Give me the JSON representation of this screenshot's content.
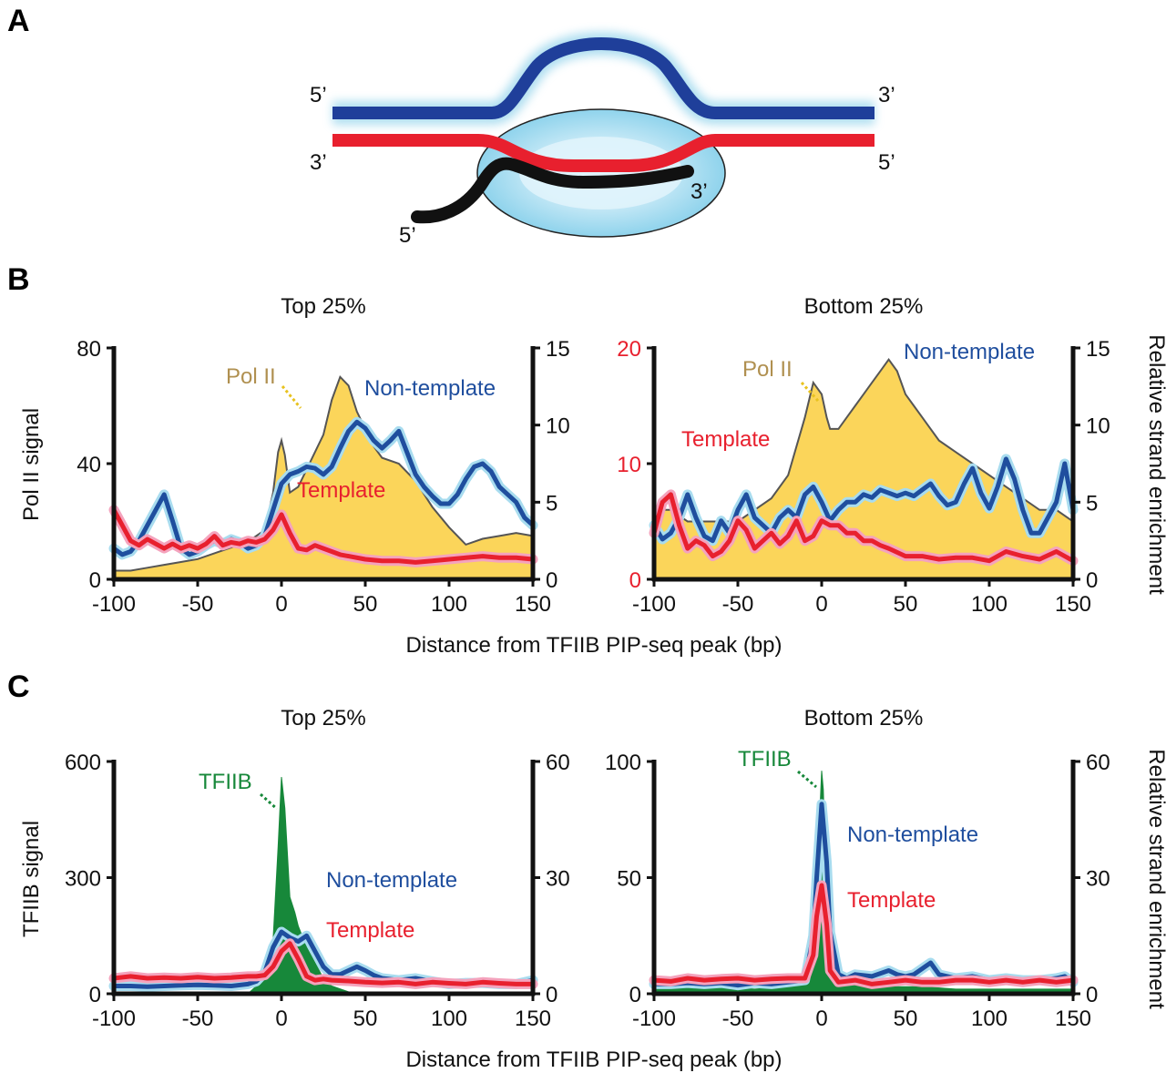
{
  "panels": {
    "a": "A",
    "b": "B",
    "c": "C"
  },
  "schematic": {
    "nontemplate_5": "5’",
    "nontemplate_3": "3’",
    "template_3": "3’",
    "template_5": "5’",
    "rna_5": "5’",
    "rna_3": "3’"
  },
  "colors": {
    "non_template": "#1f4e9e",
    "template": "#e8202e",
    "pol2": "#fbd55a",
    "tfiib": "#17883a",
    "pol2_label": "#b09050",
    "rna": "#111111",
    "bubble": "#a8dcef"
  },
  "shared_xlabel": "Distance from TFIIB PIP-seq peak (bp)",
  "chart_data": [
    {
      "id": "B-top",
      "type": "area",
      "title": "Top 25%",
      "ylabel_left": "Pol II signal",
      "ylabel_right": "",
      "xlim": [
        -100,
        150
      ],
      "x_ticks": [
        "-100",
        "-50",
        "0",
        "50",
        "100",
        "150"
      ],
      "ylim_left": [
        0,
        80
      ],
      "y_ticks_left": [
        "0",
        "40",
        "80"
      ],
      "ylim_right": [
        0,
        15
      ],
      "y_ticks_right": [
        "0",
        "5",
        "10",
        "15"
      ],
      "labels": {
        "area": "Pol II",
        "non_template": "Non-template",
        "template": "Template"
      },
      "area": {
        "name": "Pol II",
        "axis": "left",
        "x": [
          -100,
          -90,
          -80,
          -70,
          -60,
          -50,
          -40,
          -30,
          -20,
          -10,
          -5,
          -2,
          0,
          2,
          5,
          10,
          15,
          20,
          25,
          30,
          35,
          40,
          45,
          50,
          55,
          60,
          70,
          80,
          90,
          100,
          110,
          120,
          130,
          140,
          150
        ],
        "y": [
          3,
          3,
          4,
          5,
          6,
          7,
          9,
          11,
          13,
          17,
          30,
          44,
          48,
          43,
          30,
          32,
          38,
          44,
          50,
          62,
          70,
          67,
          58,
          52,
          46,
          42,
          40,
          34,
          25,
          18,
          12,
          14,
          15,
          16,
          15
        ]
      },
      "series": [
        {
          "name": "Non-template",
          "axis": "right",
          "x": [
            -100,
            -95,
            -90,
            -85,
            -80,
            -75,
            -70,
            -65,
            -60,
            -55,
            -50,
            -45,
            -40,
            -35,
            -30,
            -25,
            -20,
            -15,
            -10,
            -5,
            0,
            5,
            10,
            15,
            20,
            25,
            30,
            35,
            40,
            45,
            50,
            55,
            60,
            65,
            70,
            75,
            80,
            85,
            90,
            95,
            100,
            105,
            110,
            115,
            120,
            125,
            130,
            135,
            140,
            145,
            150
          ],
          "y": [
            2.0,
            1.6,
            1.8,
            2.5,
            3.5,
            4.5,
            5.5,
            3.8,
            2.0,
            1.6,
            1.8,
            2.2,
            2.5,
            2.3,
            2.6,
            2.4,
            2.0,
            2.2,
            2.8,
            4.5,
            6.2,
            6.8,
            7.0,
            7.3,
            7.2,
            6.8,
            7.3,
            8.5,
            9.6,
            10.2,
            9.8,
            9.0,
            8.5,
            9.0,
            9.6,
            8.2,
            6.8,
            6.0,
            5.4,
            4.9,
            4.9,
            5.5,
            6.5,
            7.3,
            7.5,
            7.0,
            6.0,
            5.5,
            5.0,
            4.0,
            3.5
          ]
        },
        {
          "name": "Template",
          "axis": "right",
          "x": [
            -100,
            -95,
            -90,
            -85,
            -80,
            -75,
            -70,
            -65,
            -60,
            -55,
            -50,
            -45,
            -40,
            -35,
            -30,
            -25,
            -20,
            -15,
            -10,
            -5,
            0,
            5,
            10,
            15,
            20,
            25,
            30,
            35,
            40,
            50,
            60,
            70,
            80,
            90,
            100,
            110,
            120,
            130,
            140,
            150
          ],
          "y": [
            4.5,
            3.5,
            2.5,
            2.2,
            2.6,
            2.3,
            2.0,
            2.3,
            2.0,
            2.2,
            2.0,
            2.3,
            2.8,
            2.2,
            2.4,
            2.3,
            2.5,
            2.4,
            2.6,
            3.2,
            4.2,
            3.0,
            2.0,
            1.9,
            2.2,
            2.0,
            1.8,
            1.6,
            1.5,
            1.3,
            1.2,
            1.2,
            1.1,
            1.2,
            1.3,
            1.4,
            1.5,
            1.4,
            1.4,
            1.3
          ]
        }
      ]
    },
    {
      "id": "B-bottom",
      "type": "area",
      "title": "Bottom 25%",
      "ylabel_left": "",
      "ylabel_right": "Relative strand enrichment",
      "xlim": [
        -100,
        150
      ],
      "x_ticks": [
        "-100",
        "-50",
        "0",
        "50",
        "100",
        "150"
      ],
      "ylim_left": [
        0,
        20
      ],
      "y_ticks_left": [
        "0",
        "10",
        "20"
      ],
      "ylim_right": [
        0,
        15
      ],
      "y_ticks_right": [
        "0",
        "5",
        "10",
        "15"
      ],
      "labels": {
        "area": "Pol II",
        "non_template": "Non-template",
        "template": "Template"
      },
      "area": {
        "name": "Pol II",
        "axis": "left",
        "x": [
          -100,
          -90,
          -80,
          -70,
          -60,
          -50,
          -40,
          -30,
          -20,
          -10,
          -5,
          0,
          3,
          5,
          10,
          15,
          20,
          25,
          30,
          35,
          40,
          45,
          50,
          55,
          60,
          70,
          80,
          90,
          100,
          110,
          120,
          130,
          140,
          150
        ],
        "y": [
          6,
          6,
          5,
          5,
          5,
          5,
          6,
          7,
          9,
          14,
          17,
          16,
          14,
          13,
          13,
          14,
          15,
          16,
          17,
          18,
          19,
          18,
          16,
          15,
          14,
          12,
          11,
          10,
          9,
          8,
          7,
          6,
          6,
          5
        ]
      },
      "series": [
        {
          "name": "Non-template",
          "axis": "right",
          "x": [
            -100,
            -95,
            -90,
            -85,
            -80,
            -75,
            -70,
            -65,
            -60,
            -55,
            -50,
            -45,
            -40,
            -35,
            -30,
            -25,
            -20,
            -15,
            -10,
            -5,
            0,
            5,
            10,
            15,
            20,
            25,
            30,
            35,
            40,
            45,
            50,
            55,
            60,
            65,
            70,
            75,
            80,
            85,
            90,
            95,
            100,
            105,
            110,
            115,
            120,
            125,
            130,
            135,
            140,
            145,
            150
          ],
          "y": [
            3.5,
            2.6,
            3.0,
            4.0,
            5.5,
            4.0,
            2.8,
            2.5,
            3.8,
            3.0,
            4.5,
            5.5,
            4.0,
            3.5,
            3.0,
            4.0,
            4.5,
            4.0,
            5.5,
            6.0,
            5.0,
            3.8,
            4.5,
            5.0,
            5.0,
            5.5,
            5.3,
            5.8,
            5.6,
            5.4,
            5.6,
            5.4,
            5.8,
            6.2,
            5.4,
            4.8,
            5.0,
            6.2,
            7.2,
            5.6,
            4.6,
            6.0,
            7.8,
            6.5,
            4.5,
            3.0,
            3.0,
            4.0,
            5.0,
            7.5,
            4.5
          ]
        },
        {
          "name": "Template",
          "axis": "right",
          "x": [
            -100,
            -95,
            -90,
            -85,
            -80,
            -75,
            -70,
            -65,
            -60,
            -55,
            -50,
            -45,
            -40,
            -35,
            -30,
            -25,
            -20,
            -15,
            -10,
            -5,
            0,
            5,
            10,
            15,
            20,
            25,
            30,
            35,
            40,
            50,
            60,
            70,
            80,
            90,
            100,
            110,
            120,
            130,
            140,
            150
          ],
          "y": [
            3.0,
            5.0,
            5.5,
            3.5,
            2.0,
            2.5,
            2.2,
            1.5,
            1.8,
            2.5,
            3.8,
            3.2,
            2.0,
            2.5,
            3.0,
            2.3,
            2.8,
            3.8,
            2.5,
            2.8,
            3.8,
            3.5,
            3.5,
            3.0,
            3.0,
            2.5,
            2.5,
            2.2,
            2.0,
            1.5,
            1.5,
            1.3,
            1.4,
            1.4,
            1.2,
            1.8,
            1.5,
            1.3,
            1.8,
            1.2
          ]
        }
      ]
    },
    {
      "id": "C-top",
      "type": "area",
      "title": "Top 25%",
      "ylabel_left": "TFIIB signal",
      "ylabel_right": "",
      "xlim": [
        -100,
        150
      ],
      "x_ticks": [
        "-100",
        "-50",
        "0",
        "50",
        "100",
        "150"
      ],
      "ylim_left": [
        0,
        600
      ],
      "y_ticks_left": [
        "0",
        "300",
        "600"
      ],
      "ylim_right": [
        0,
        60
      ],
      "y_ticks_right": [
        "0",
        "30",
        "60"
      ],
      "labels": {
        "area": "TFIIB",
        "non_template": "Non-template",
        "template": "Template"
      },
      "area": {
        "name": "TFIIB",
        "axis": "left",
        "x": [
          -100,
          -20,
          -10,
          -5,
          -2,
          0,
          2,
          5,
          8,
          10,
          15,
          20,
          25,
          30,
          40,
          50,
          150
        ],
        "y": [
          0,
          0,
          40,
          140,
          380,
          560,
          480,
          250,
          210,
          175,
          120,
          80,
          40,
          20,
          5,
          0,
          0
        ]
      },
      "series": [
        {
          "name": "Non-template",
          "axis": "right",
          "x": [
            -100,
            -90,
            -80,
            -70,
            -60,
            -50,
            -40,
            -30,
            -20,
            -15,
            -10,
            -5,
            0,
            5,
            10,
            15,
            20,
            25,
            30,
            35,
            40,
            45,
            50,
            55,
            60,
            70,
            80,
            90,
            100,
            110,
            120,
            130,
            140,
            150
          ],
          "y": [
            2.0,
            2.0,
            1.8,
            2.0,
            2.2,
            2.3,
            2.2,
            2.0,
            2.5,
            3.2,
            5.5,
            12.0,
            16.0,
            14.5,
            13.5,
            15.0,
            11.0,
            7.0,
            5.0,
            5.0,
            6.0,
            7.0,
            6.0,
            4.8,
            4.0,
            3.5,
            4.0,
            3.2,
            2.5,
            2.8,
            2.8,
            2.5,
            2.5,
            3.5
          ]
        },
        {
          "name": "Template",
          "axis": "right",
          "x": [
            -100,
            -90,
            -80,
            -70,
            -60,
            -50,
            -40,
            -30,
            -20,
            -15,
            -10,
            -5,
            0,
            5,
            10,
            15,
            20,
            25,
            30,
            40,
            50,
            60,
            70,
            80,
            90,
            100,
            110,
            120,
            130,
            140,
            150
          ],
          "y": [
            4.0,
            4.5,
            4.0,
            4.2,
            4.0,
            4.3,
            4.0,
            4.2,
            4.5,
            4.5,
            4.8,
            7.0,
            11.0,
            13.0,
            9.0,
            4.5,
            3.5,
            3.8,
            3.5,
            3.3,
            3.0,
            2.8,
            3.0,
            2.5,
            3.0,
            2.7,
            2.5,
            3.0,
            2.7,
            2.5,
            2.5
          ]
        }
      ]
    },
    {
      "id": "C-bottom",
      "type": "area",
      "title": "Bottom 25%",
      "ylabel_left": "",
      "ylabel_right": "Relative strand enrichment",
      "xlim": [
        -100,
        150
      ],
      "x_ticks": [
        "-100",
        "-50",
        "0",
        "50",
        "100",
        "150"
      ],
      "ylim_left": [
        0,
        100
      ],
      "y_ticks_left": [
        "0",
        "50",
        "100"
      ],
      "ylim_right": [
        0,
        60
      ],
      "y_ticks_right": [
        "0",
        "30",
        "60"
      ],
      "labels": {
        "area": "TFIIB",
        "non_template": "Non-template",
        "template": "Template"
      },
      "area": {
        "name": "TFIIB",
        "axis": "left",
        "x": [
          -100,
          -60,
          -40,
          -20,
          -10,
          -5,
          -3,
          -1,
          0,
          1,
          3,
          5,
          10,
          20,
          40,
          60,
          80,
          100,
          150
        ],
        "y": [
          2,
          3,
          2,
          3,
          4,
          10,
          40,
          80,
          96,
          88,
          40,
          12,
          6,
          4,
          3,
          3,
          2,
          2,
          2
        ]
      },
      "series": [
        {
          "name": "Non-template",
          "axis": "right",
          "x": [
            -100,
            -90,
            -80,
            -70,
            -60,
            -50,
            -40,
            -30,
            -20,
            -10,
            -5,
            -3,
            0,
            3,
            5,
            10,
            15,
            20,
            30,
            40,
            45,
            50,
            55,
            60,
            65,
            70,
            80,
            90,
            100,
            110,
            120,
            130,
            140,
            145,
            150
          ],
          "y": [
            2.5,
            2.5,
            2.8,
            2.5,
            2.8,
            2.2,
            2.8,
            2.5,
            3.0,
            3.5,
            15.0,
            30.0,
            49.0,
            34.0,
            16.0,
            5.0,
            4.0,
            5.0,
            4.5,
            6.0,
            5.0,
            4.5,
            5.0,
            6.5,
            8.0,
            5.0,
            4.0,
            4.5,
            3.5,
            4.0,
            3.5,
            3.5,
            4.0,
            4.5,
            3.0
          ]
        },
        {
          "name": "Template",
          "axis": "right",
          "x": [
            -100,
            -90,
            -80,
            -70,
            -60,
            -50,
            -40,
            -30,
            -20,
            -10,
            -5,
            -3,
            0,
            3,
            5,
            10,
            20,
            30,
            40,
            50,
            60,
            70,
            80,
            90,
            100,
            110,
            120,
            130,
            140,
            150
          ],
          "y": [
            3.5,
            3.2,
            4.0,
            3.5,
            3.8,
            4.0,
            3.5,
            3.8,
            4.0,
            4.0,
            10.0,
            20.0,
            28.0,
            18.0,
            6.0,
            3.0,
            3.5,
            2.5,
            3.0,
            3.5,
            3.0,
            3.0,
            3.5,
            3.5,
            3.0,
            3.5,
            3.0,
            3.5,
            3.0,
            3.5
          ]
        }
      ]
    }
  ]
}
